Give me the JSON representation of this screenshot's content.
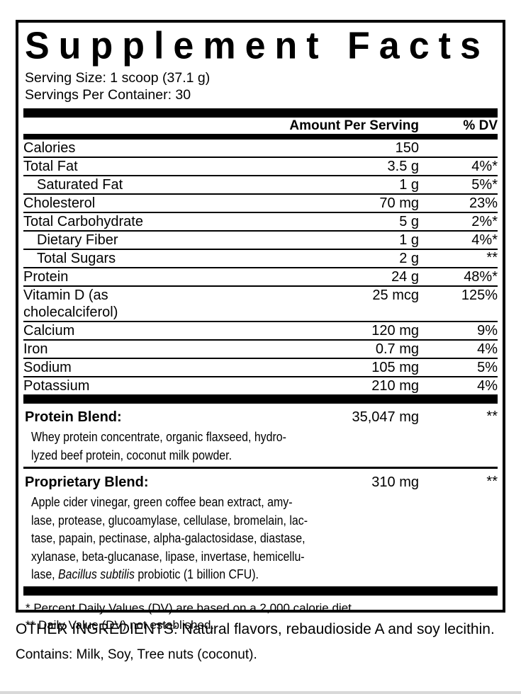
{
  "panel": {
    "title": "Supplement Facts",
    "serving_size": "Serving Size: 1 scoop (37.1 g)",
    "servings_per_container": "Servings Per Container: 30",
    "header": {
      "amount": "Amount Per Serving",
      "dv": "% DV"
    },
    "nutrients": [
      {
        "name": "Calories",
        "amount": "150",
        "dv": ""
      },
      {
        "name": "Total Fat",
        "amount": "3.5 g",
        "dv": "4%*"
      },
      {
        "name": "Saturated Fat",
        "amount": "1 g",
        "dv": "5%*",
        "indent": true
      },
      {
        "name": "Cholesterol",
        "amount": "70 mg",
        "dv": "23%"
      },
      {
        "name": "Total Carbohydrate",
        "amount": "5 g",
        "dv": "2%*"
      },
      {
        "name": "Dietary Fiber",
        "amount": "1 g",
        "dv": "4%*",
        "indent": true
      },
      {
        "name": "Total Sugars",
        "amount": "2 g",
        "dv": "**",
        "indent": true
      },
      {
        "name": "Protein",
        "amount": "24 g",
        "dv": "48%*"
      },
      {
        "name": "Vitamin D (as cholecalciferol)",
        "amount": "25 mcg",
        "dv": "125%"
      },
      {
        "name": "Calcium",
        "amount": "120 mg",
        "dv": "9%"
      },
      {
        "name": "Iron",
        "amount": "0.7 mg",
        "dv": "4%"
      },
      {
        "name": "Sodium",
        "amount": "105 mg",
        "dv": "5%"
      },
      {
        "name": "Potassium",
        "amount": "210 mg",
        "dv": "4%"
      }
    ],
    "protein_blend": {
      "name": "Protein Blend:",
      "amount": "35,047 mg",
      "dv": "**",
      "desc_lines": [
        "Whey protein concentrate, organic flaxseed, hydro-",
        "lyzed beef protein, coconut milk powder."
      ]
    },
    "proprietary_blend": {
      "name": "Proprietary Blend:",
      "amount": "310 mg",
      "dv": "**",
      "desc_lines": [
        "Apple cider vinegar, green coffee bean extract, amy-",
        "lase, protease, glucoamylase, cellulase, bromelain, lac-",
        "tase, papain, pectinase, alpha-galactosidase, diastase,",
        "xylanase, beta-glucanase, lipase, invertase, hemicellu-"
      ],
      "last_line": {
        "pre": "lase, ",
        "italic": "Bacillus subtilis",
        "post": " probiotic (1 billion CFU)."
      }
    },
    "footnotes": [
      "* Percent Daily Values (DV) are based on a 2,000 calorie diet.",
      "** Daily Value (DV) not established."
    ],
    "other_ingredients_label": "OTHER INGREDIENTS:",
    "other_ingredients_text": " Natural flavors, rebaudioside A and soy lecithin.",
    "contains": "Contains: Milk, Soy, Tree nuts (coconut)."
  }
}
